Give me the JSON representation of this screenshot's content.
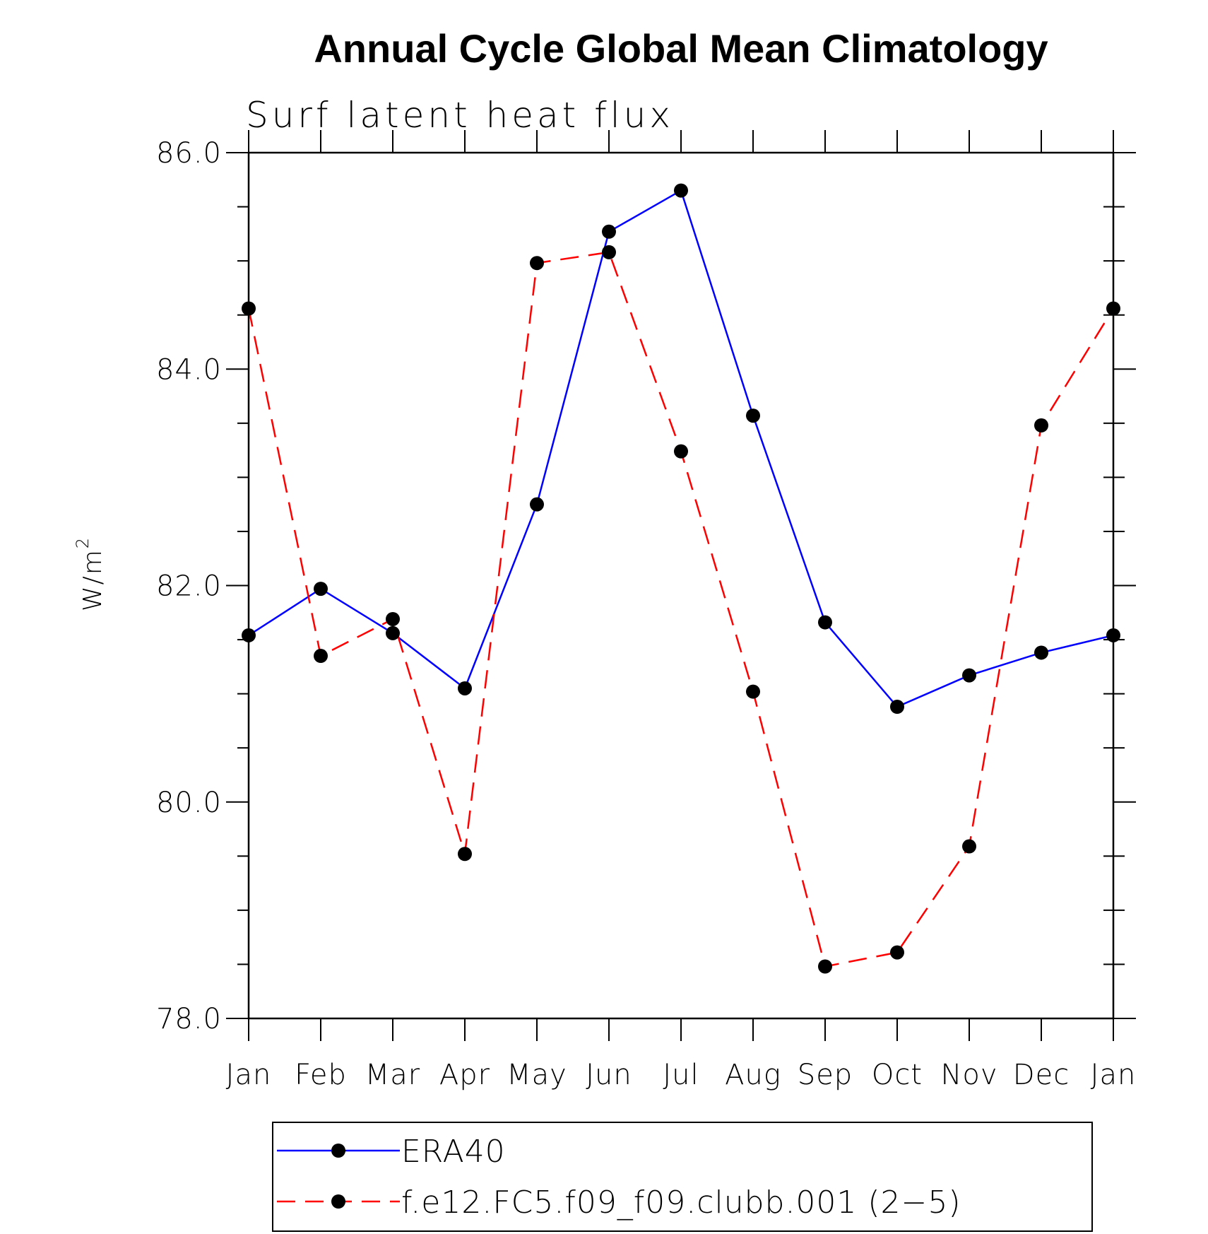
{
  "chart_data": {
    "type": "line",
    "title": "Annual Cycle Global Mean Climatology",
    "subtitle": "Surf latent heat flux",
    "xlabel": "",
    "ylabel": "W/m",
    "ylabel_superscript": "2",
    "categories": [
      "Jan",
      "Feb",
      "Mar",
      "Apr",
      "May",
      "Jun",
      "Jul",
      "Aug",
      "Sep",
      "Oct",
      "Nov",
      "Dec",
      "Jan"
    ],
    "ylim": [
      78.0,
      86.0
    ],
    "yticks": [
      "78.0",
      "80.0",
      "82.0",
      "84.0",
      "86.0"
    ],
    "ytick_values": [
      78.0,
      80.0,
      82.0,
      84.0,
      86.0
    ],
    "series": [
      {
        "name": "ERA40",
        "color": "#0000ff",
        "style": "solid",
        "values": [
          81.54,
          81.97,
          81.56,
          81.05,
          82.75,
          85.27,
          85.65,
          83.57,
          81.66,
          80.88,
          81.17,
          81.38,
          81.54
        ]
      },
      {
        "name": "f.e12.FC5.f09_f09.clubb.001 (2−5)",
        "color": "#ff0000",
        "style": "dashed",
        "values": [
          84.56,
          81.35,
          81.69,
          79.52,
          84.98,
          85.08,
          83.24,
          81.02,
          78.48,
          78.61,
          79.59,
          83.48,
          84.56
        ]
      }
    ],
    "marker_color": "#000000",
    "legend_position": "bottom"
  }
}
